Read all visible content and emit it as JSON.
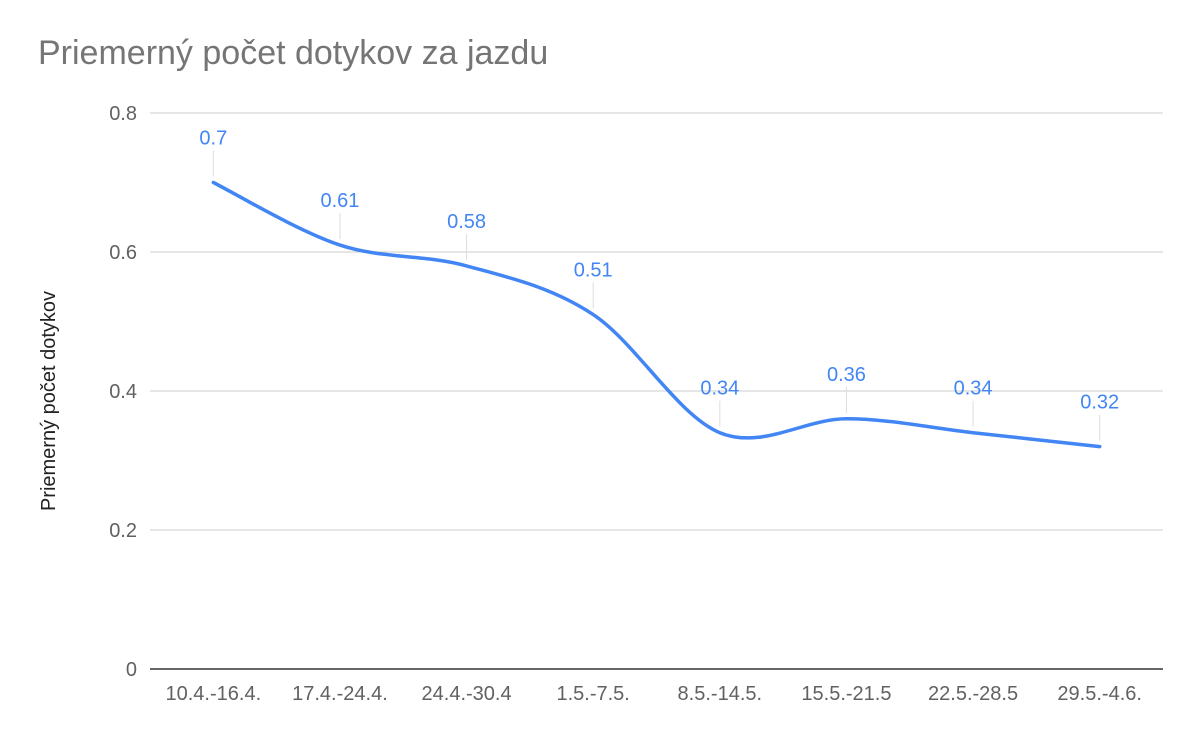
{
  "chart_data": {
    "type": "line",
    "title": "Priemerný počet dotykov za jazdu",
    "xlabel": "",
    "ylabel": "Priemerný počet dotykov",
    "categories": [
      "10.4.-16.4.",
      "17.4.-24.4.",
      "24.4.-30.4",
      "1.5.-7.5.",
      "8.5.-14.5.",
      "15.5.-21.5",
      "22.5.-28.5",
      "29.5.-4.6."
    ],
    "series": [
      {
        "values": [
          0.7,
          0.61,
          0.58,
          0.51,
          0.34,
          0.36,
          0.34,
          0.32
        ],
        "labels": [
          "0.7",
          "0.61",
          "0.58",
          "0.51",
          "0.34",
          "0.36",
          "0.34",
          "0.32"
        ],
        "color": "#4285f4",
        "smooth": true
      }
    ],
    "ylim": [
      0,
      0.8
    ],
    "yticks": [
      "0",
      "0.2",
      "0.4",
      "0.6",
      "0.8"
    ],
    "grid": true,
    "legend": "none"
  }
}
